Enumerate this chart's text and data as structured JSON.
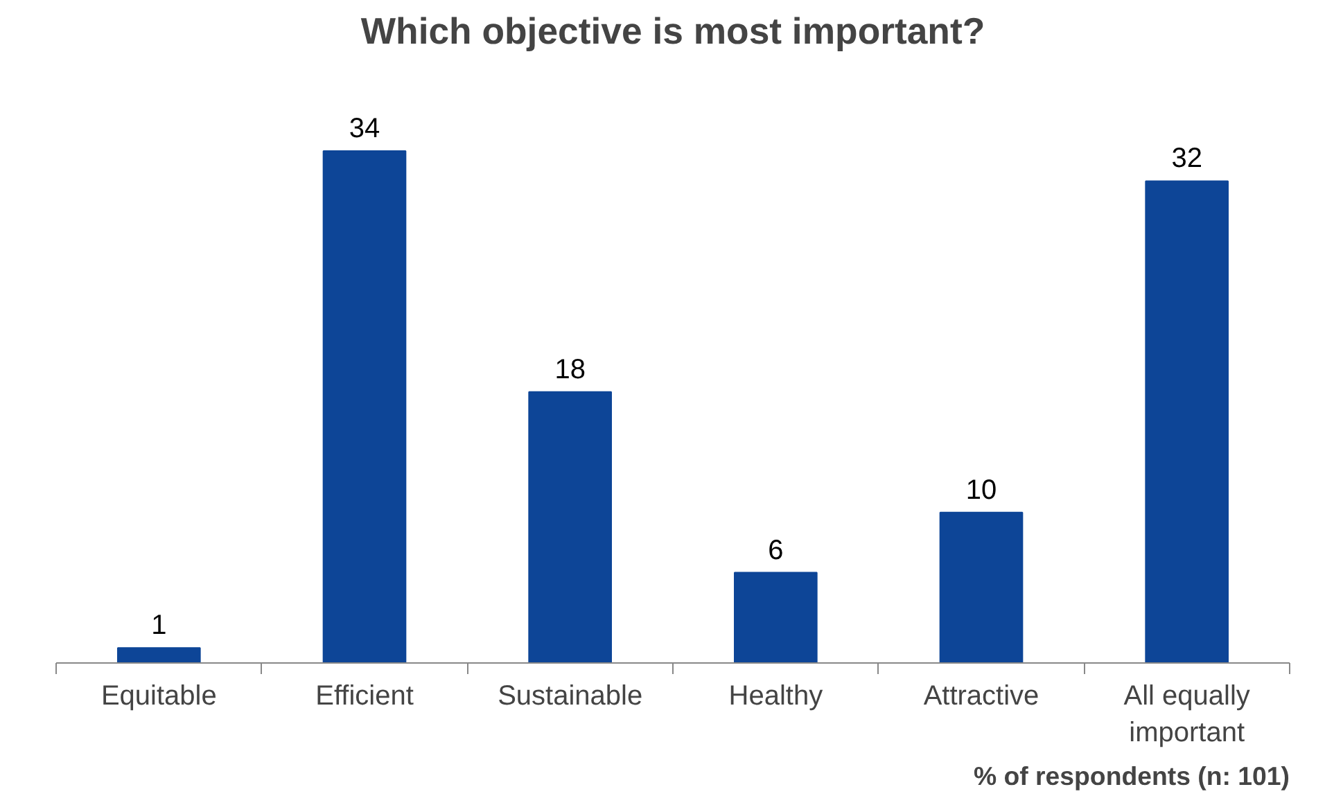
{
  "chart_data": {
    "type": "bar",
    "title": "Which objective is most important?",
    "categories": [
      "Equitable",
      "Efficient",
      "Sustainable",
      "Healthy",
      "Attractive",
      "All equally important"
    ],
    "values": [
      1,
      34,
      18,
      6,
      10,
      32
    ],
    "color": "#0d4597",
    "data_labels": true,
    "annotations": [
      "% of respondents (n: 101)"
    ]
  }
}
